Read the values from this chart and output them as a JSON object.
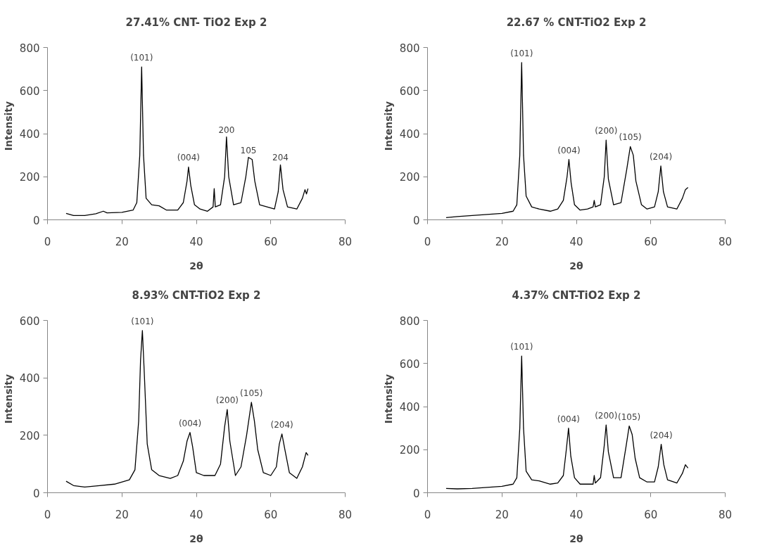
{
  "chart_data": [
    {
      "type": "line",
      "title": "27.41% CNT- TiO2 Exp 2",
      "xlabel": "2θ",
      "ylabel": "Intensity",
      "xlim": [
        0,
        80
      ],
      "xticks": [
        0,
        20,
        40,
        60,
        80
      ],
      "ylim": [
        0,
        800
      ],
      "yticks": [
        0,
        200,
        400,
        600,
        800
      ],
      "grid": false,
      "marker": "none",
      "series": [
        {
          "color": "#000000",
          "x": [
            5,
            7,
            10,
            13,
            15,
            16,
            20,
            23,
            24,
            24.8,
            25.3,
            25.8,
            26.5,
            28,
            30,
            32,
            35,
            36.5,
            37.5,
            37.9,
            38.5,
            39.5,
            41,
            43,
            44.5,
            44.8,
            45.1,
            46.5,
            47.6,
            48.1,
            48.7,
            50,
            52,
            53.3,
            54,
            55,
            55.7,
            57,
            59,
            61,
            62,
            62.6,
            63.3,
            64.5,
            67,
            68.5,
            69.2,
            69.6,
            70
          ],
          "values": [
            30,
            20,
            20,
            28,
            40,
            32,
            35,
            45,
            80,
            300,
            710,
            300,
            100,
            70,
            65,
            45,
            45,
            80,
            180,
            245,
            160,
            70,
            50,
            40,
            60,
            145,
            60,
            70,
            200,
            385,
            200,
            70,
            80,
            200,
            290,
            280,
            180,
            70,
            60,
            50,
            130,
            255,
            140,
            60,
            50,
            100,
            140,
            120,
            145
          ]
        }
      ],
      "annotations": [
        {
          "text": "(101)",
          "x": 25.3,
          "y": 710
        },
        {
          "text": "(004)",
          "x": 37.9,
          "y": 245
        },
        {
          "text": "200",
          "x": 48.1,
          "y": 385
        },
        {
          "text": "105",
          "x": 54,
          "y": 290
        },
        {
          "text": "204",
          "x": 62.6,
          "y": 255
        }
      ]
    },
    {
      "type": "line",
      "title": "22.67 % CNT-TiO2 Exp 2",
      "xlabel": "2θ",
      "ylabel": "Intensity",
      "xlim": [
        0,
        80
      ],
      "xticks": [
        0,
        20,
        40,
        60,
        80
      ],
      "ylim": [
        0,
        800
      ],
      "yticks": [
        0,
        200,
        400,
        600,
        800
      ],
      "grid": false,
      "marker": "none",
      "series": [
        {
          "color": "#000000",
          "x": [
            5,
            8,
            12,
            16,
            20,
            23,
            24,
            24.8,
            25.3,
            25.8,
            26.5,
            28,
            30,
            33,
            35,
            36.5,
            37.5,
            38,
            38.6,
            39.5,
            41,
            43,
            44.5,
            44.8,
            45.1,
            46.5,
            47.5,
            48,
            48.6,
            50,
            52,
            53.5,
            54.5,
            55.3,
            56,
            57.5,
            59,
            61,
            62,
            62.7,
            63.4,
            64.5,
            67,
            68.5,
            69.3,
            70
          ],
          "values": [
            10,
            15,
            20,
            25,
            30,
            40,
            70,
            300,
            730,
            300,
            110,
            60,
            50,
            40,
            50,
            90,
            200,
            280,
            170,
            70,
            45,
            50,
            60,
            90,
            60,
            70,
            200,
            370,
            190,
            70,
            80,
            230,
            340,
            300,
            180,
            70,
            50,
            60,
            130,
            250,
            130,
            60,
            50,
            100,
            140,
            150
          ]
        }
      ],
      "annotations": [
        {
          "text": "(101)",
          "x": 25.3,
          "y": 730
        },
        {
          "text": "(004)",
          "x": 38,
          "y": 280
        },
        {
          "text": "(200)",
          "x": 48,
          "y": 370
        },
        {
          "text": "(105)",
          "x": 54.5,
          "y": 340
        },
        {
          "text": "(204)",
          "x": 62.7,
          "y": 250
        }
      ]
    },
    {
      "type": "line",
      "title": "8.93% CNT-TiO2 Exp 2",
      "xlabel": "2θ",
      "ylabel": "Intensity",
      "xlim": [
        0,
        80
      ],
      "xticks": [
        0,
        20,
        40,
        60,
        80
      ],
      "ylim": [
        0,
        600
      ],
      "yticks": [
        0,
        200,
        400,
        600
      ],
      "grid": false,
      "marker": "none",
      "series": [
        {
          "color": "#000000",
          "x": [
            5,
            7,
            10,
            14,
            18,
            22,
            23.5,
            24.5,
            25,
            25.5,
            26,
            26.8,
            28,
            30,
            33,
            35,
            36.5,
            37.5,
            38.3,
            39,
            40,
            42,
            45,
            46.5,
            47.6,
            48.3,
            49,
            50.5,
            52,
            53.5,
            54.8,
            55.6,
            56.5,
            58,
            60,
            61.5,
            62.3,
            63,
            63.8,
            65,
            67,
            68.5,
            69.5,
            70
          ],
          "values": [
            40,
            25,
            20,
            25,
            30,
            45,
            80,
            250,
            460,
            565,
            420,
            170,
            80,
            60,
            50,
            60,
            110,
            180,
            210,
            160,
            70,
            60,
            60,
            100,
            230,
            290,
            180,
            60,
            90,
            200,
            315,
            250,
            150,
            70,
            60,
            90,
            170,
            205,
            150,
            70,
            50,
            90,
            140,
            130
          ]
        }
      ],
      "annotations": [
        {
          "text": "(101)",
          "x": 25.5,
          "y": 565
        },
        {
          "text": "(004)",
          "x": 38.3,
          "y": 210
        },
        {
          "text": "(200)",
          "x": 48.3,
          "y": 290
        },
        {
          "text": "(105)",
          "x": 54.8,
          "y": 315
        },
        {
          "text": "(204)",
          "x": 63,
          "y": 205
        }
      ]
    },
    {
      "type": "line",
      "title": "4.37% CNT-TiO2 Exp 2",
      "xlabel": "2θ",
      "ylabel": "Intensity",
      "xlim": [
        0,
        80
      ],
      "xticks": [
        0,
        20,
        40,
        60,
        80
      ],
      "ylim": [
        0,
        800
      ],
      "yticks": [
        0,
        200,
        400,
        600,
        800
      ],
      "grid": false,
      "marker": "none",
      "series": [
        {
          "color": "#000000",
          "x": [
            5,
            8,
            12,
            16,
            20,
            23,
            24,
            24.8,
            25.3,
            25.8,
            26.5,
            28,
            30,
            33,
            35,
            36.5,
            37.3,
            37.9,
            38.5,
            39.5,
            41,
            43,
            44.5,
            44.8,
            45.1,
            46.5,
            47.5,
            48,
            48.6,
            50,
            52,
            53.4,
            54.2,
            55,
            55.8,
            57,
            59,
            61,
            62,
            62.8,
            63.5,
            64.5,
            67,
            68.5,
            69.3,
            70
          ],
          "values": [
            20,
            18,
            20,
            25,
            30,
            40,
            70,
            300,
            635,
            300,
            100,
            60,
            55,
            40,
            45,
            80,
            200,
            300,
            170,
            70,
            40,
            40,
            40,
            80,
            45,
            70,
            220,
            315,
            190,
            70,
            70,
            220,
            310,
            270,
            160,
            70,
            50,
            50,
            120,
            225,
            130,
            60,
            45,
            90,
            130,
            115
          ]
        }
      ],
      "annotations": [
        {
          "text": "(101)",
          "x": 25.3,
          "y": 635
        },
        {
          "text": "(004)",
          "x": 37.9,
          "y": 300
        },
        {
          "text": "(200)",
          "x": 48,
          "y": 315
        },
        {
          "text": "(105)",
          "x": 54.2,
          "y": 310
        },
        {
          "text": "(204)",
          "x": 62.8,
          "y": 225
        }
      ]
    }
  ]
}
